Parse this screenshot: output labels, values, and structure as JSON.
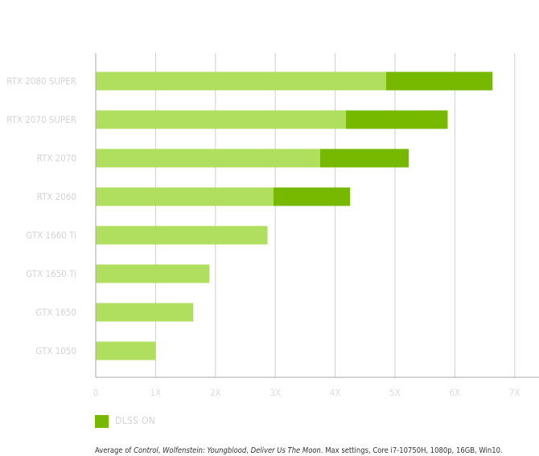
{
  "chart_data": {
    "type": "bar",
    "orientation": "horizontal",
    "stacked": true,
    "categories": [
      "RTX 2080 SUPER",
      "RTX 2070 SUPER",
      "RTX 2070",
      "RTX 2060",
      "GTX 1660 Ti",
      "GTX 1650 Ti",
      "GTX 1650",
      "GTX 1050"
    ],
    "series": [
      {
        "values": [
          4.85,
          4.18,
          3.75,
          2.97,
          2.87,
          1.9,
          1.63,
          1.0
        ],
        "color": "#b0df60"
      },
      {
        "name": "DLSS ON",
        "values": [
          1.78,
          1.7,
          1.48,
          1.28,
          0,
          0,
          0,
          0
        ],
        "color": "#76b900"
      }
    ],
    "x_ticks": [
      "0",
      "1X",
      "2X",
      "3X",
      "4X",
      "5X",
      "6X",
      "7X"
    ],
    "xlim": [
      0,
      7
    ],
    "grid": true,
    "legend_position": "bottom-left"
  },
  "legend": {
    "label": "DLSS ON",
    "color": "#76b900"
  },
  "footnote": {
    "prefix": "Average of ",
    "game1": "Control",
    "sep1": ", ",
    "game2": "Wolfenstein: Youngblood",
    "sep2": ", ",
    "game3": "Deliver Us The Moon",
    "suffix": ". Max settings, Core i7-10750H, 1080p, 16GB, Win10."
  }
}
